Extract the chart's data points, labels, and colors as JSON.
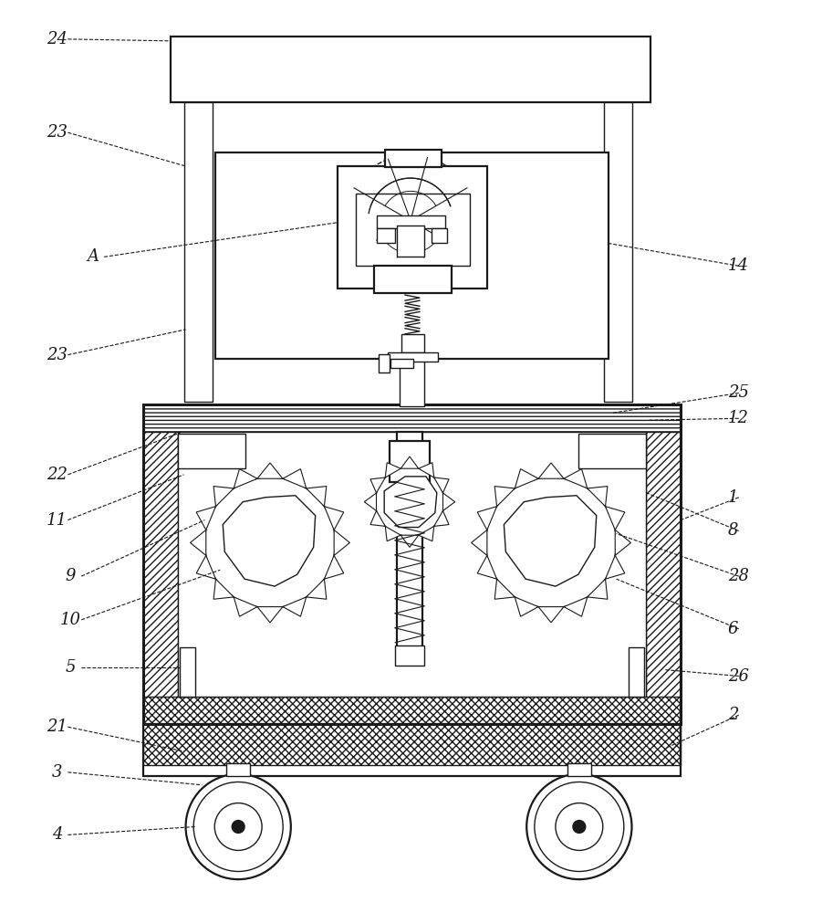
{
  "bg_color": "#ffffff",
  "lc": "#1a1a1a",
  "fig_width": 9.01,
  "fig_height": 10.0,
  "lw_thin": 1.0,
  "lw_med": 1.6,
  "lw_thick": 2.2
}
